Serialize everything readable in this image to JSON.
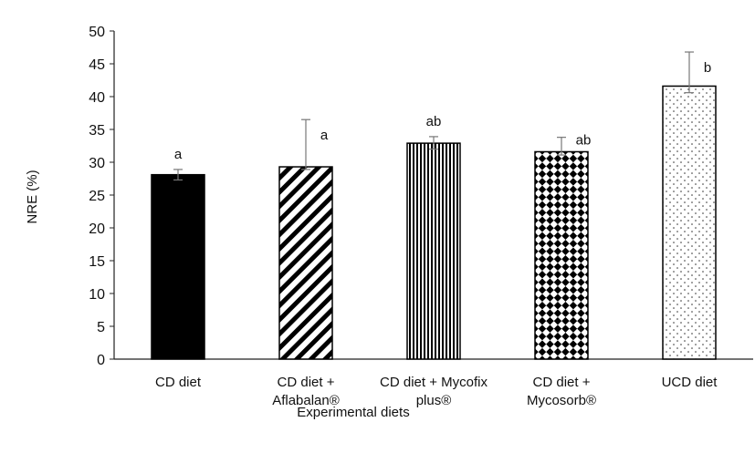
{
  "chart_data": {
    "type": "bar",
    "title": "",
    "xlabel": "Experimental diets",
    "ylabel": "NRE (%)",
    "ylim": [
      0,
      50
    ],
    "ytick_step": 5,
    "yticks": [
      "0",
      "5",
      "10",
      "15",
      "20",
      "25",
      "30",
      "35",
      "40",
      "45",
      "50"
    ],
    "grid": false,
    "categories": [
      [
        "CD diet"
      ],
      [
        "CD diet +",
        "Aflabalan®"
      ],
      [
        "CD diet + Mycofix",
        "plus®"
      ],
      [
        "CD diet +",
        "Mycosorb®"
      ],
      [
        "UCD diet"
      ]
    ],
    "values": [
      28.1,
      29.3,
      32.9,
      31.6,
      41.6
    ],
    "error_low": [
      0.8,
      0.4,
      0.9,
      0.5,
      1.0
    ],
    "error_high": [
      0.8,
      7.2,
      1.0,
      2.2,
      5.2
    ],
    "significance": [
      "a",
      "a",
      "ab",
      "ab",
      "b"
    ],
    "patterns": [
      "solid",
      "diagonal-stripes",
      "vertical-stripes",
      "diamond-checker",
      "dots"
    ],
    "colors": {
      "fill": "#000000",
      "background": "#ffffff",
      "axis": "#222222",
      "error": "#777777"
    }
  }
}
